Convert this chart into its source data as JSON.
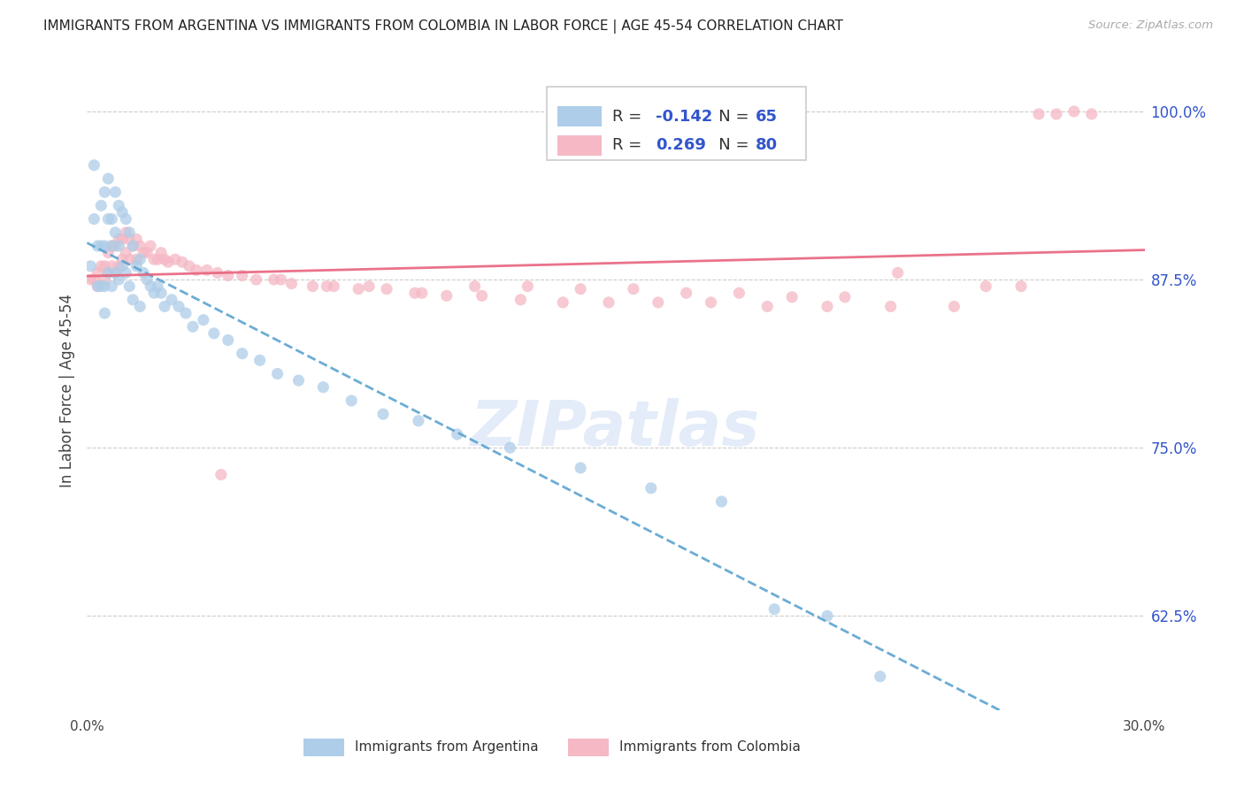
{
  "title": "IMMIGRANTS FROM ARGENTINA VS IMMIGRANTS FROM COLOMBIA IN LABOR FORCE | AGE 45-54 CORRELATION CHART",
  "source": "Source: ZipAtlas.com",
  "ylabel": "In Labor Force | Age 45-54",
  "xlim": [
    0.0,
    0.3
  ],
  "ylim": [
    0.555,
    1.03
  ],
  "yticks": [
    0.625,
    0.75,
    0.875,
    1.0
  ],
  "ytick_labels": [
    "62.5%",
    "75.0%",
    "87.5%",
    "100.0%"
  ],
  "xticks": [
    0.0,
    0.05,
    0.1,
    0.15,
    0.2,
    0.25,
    0.3
  ],
  "xtick_labels": [
    "0.0%",
    "",
    "",
    "",
    "",
    "",
    "30.0%"
  ],
  "argentina_R": -0.142,
  "argentina_N": 65,
  "colombia_R": 0.269,
  "colombia_N": 80,
  "argentina_color": "#aecde8",
  "colombia_color": "#f5b8c4",
  "argentina_line_color": "#5ba3d0",
  "colombia_line_color": "#e8637d",
  "legend_label_argentina": "Immigrants from Argentina",
  "legend_label_colombia": "Immigrants from Colombia",
  "watermark": "ZIPatlas",
  "argentina_x": [
    0.001,
    0.002,
    0.002,
    0.003,
    0.003,
    0.004,
    0.004,
    0.004,
    0.005,
    0.005,
    0.005,
    0.005,
    0.006,
    0.006,
    0.006,
    0.007,
    0.007,
    0.007,
    0.008,
    0.008,
    0.008,
    0.009,
    0.009,
    0.009,
    0.01,
    0.01,
    0.011,
    0.011,
    0.012,
    0.012,
    0.013,
    0.013,
    0.014,
    0.015,
    0.015,
    0.016,
    0.017,
    0.018,
    0.019,
    0.02,
    0.021,
    0.022,
    0.024,
    0.026,
    0.028,
    0.03,
    0.033,
    0.036,
    0.04,
    0.044,
    0.049,
    0.054,
    0.06,
    0.067,
    0.075,
    0.084,
    0.094,
    0.105,
    0.12,
    0.14,
    0.16,
    0.18,
    0.195,
    0.21,
    0.225
  ],
  "argentina_y": [
    0.885,
    0.92,
    0.96,
    0.9,
    0.87,
    0.93,
    0.9,
    0.87,
    0.94,
    0.9,
    0.87,
    0.85,
    0.95,
    0.92,
    0.88,
    0.92,
    0.9,
    0.87,
    0.94,
    0.91,
    0.88,
    0.93,
    0.9,
    0.875,
    0.925,
    0.885,
    0.92,
    0.88,
    0.91,
    0.87,
    0.9,
    0.86,
    0.885,
    0.89,
    0.855,
    0.88,
    0.875,
    0.87,
    0.865,
    0.87,
    0.865,
    0.855,
    0.86,
    0.855,
    0.85,
    0.84,
    0.845,
    0.835,
    0.83,
    0.82,
    0.815,
    0.805,
    0.8,
    0.795,
    0.785,
    0.775,
    0.77,
    0.76,
    0.75,
    0.735,
    0.72,
    0.71,
    0.63,
    0.625,
    0.58
  ],
  "colombia_x": [
    0.001,
    0.002,
    0.003,
    0.003,
    0.004,
    0.005,
    0.005,
    0.006,
    0.006,
    0.007,
    0.007,
    0.008,
    0.008,
    0.009,
    0.009,
    0.01,
    0.01,
    0.011,
    0.011,
    0.012,
    0.012,
    0.013,
    0.014,
    0.014,
    0.015,
    0.016,
    0.017,
    0.018,
    0.019,
    0.02,
    0.021,
    0.022,
    0.023,
    0.025,
    0.027,
    0.029,
    0.031,
    0.034,
    0.037,
    0.04,
    0.044,
    0.048,
    0.053,
    0.058,
    0.064,
    0.07,
    0.077,
    0.085,
    0.093,
    0.102,
    0.112,
    0.123,
    0.135,
    0.148,
    0.162,
    0.177,
    0.193,
    0.21,
    0.228,
    0.246,
    0.038,
    0.055,
    0.068,
    0.08,
    0.095,
    0.11,
    0.125,
    0.14,
    0.155,
    0.17,
    0.185,
    0.2,
    0.215,
    0.23,
    0.255,
    0.265,
    0.27,
    0.275,
    0.28,
    0.285
  ],
  "colombia_y": [
    0.875,
    0.875,
    0.88,
    0.87,
    0.885,
    0.885,
    0.875,
    0.895,
    0.88,
    0.9,
    0.885,
    0.9,
    0.88,
    0.905,
    0.885,
    0.905,
    0.89,
    0.91,
    0.895,
    0.905,
    0.89,
    0.9,
    0.905,
    0.89,
    0.9,
    0.895,
    0.895,
    0.9,
    0.89,
    0.89,
    0.895,
    0.89,
    0.888,
    0.89,
    0.888,
    0.885,
    0.882,
    0.882,
    0.88,
    0.878,
    0.878,
    0.875,
    0.875,
    0.872,
    0.87,
    0.87,
    0.868,
    0.868,
    0.865,
    0.863,
    0.863,
    0.86,
    0.858,
    0.858,
    0.858,
    0.858,
    0.855,
    0.855,
    0.855,
    0.855,
    0.73,
    0.875,
    0.87,
    0.87,
    0.865,
    0.87,
    0.87,
    0.868,
    0.868,
    0.865,
    0.865,
    0.862,
    0.862,
    0.88,
    0.87,
    0.87,
    0.998,
    0.998,
    1.0,
    0.998
  ]
}
